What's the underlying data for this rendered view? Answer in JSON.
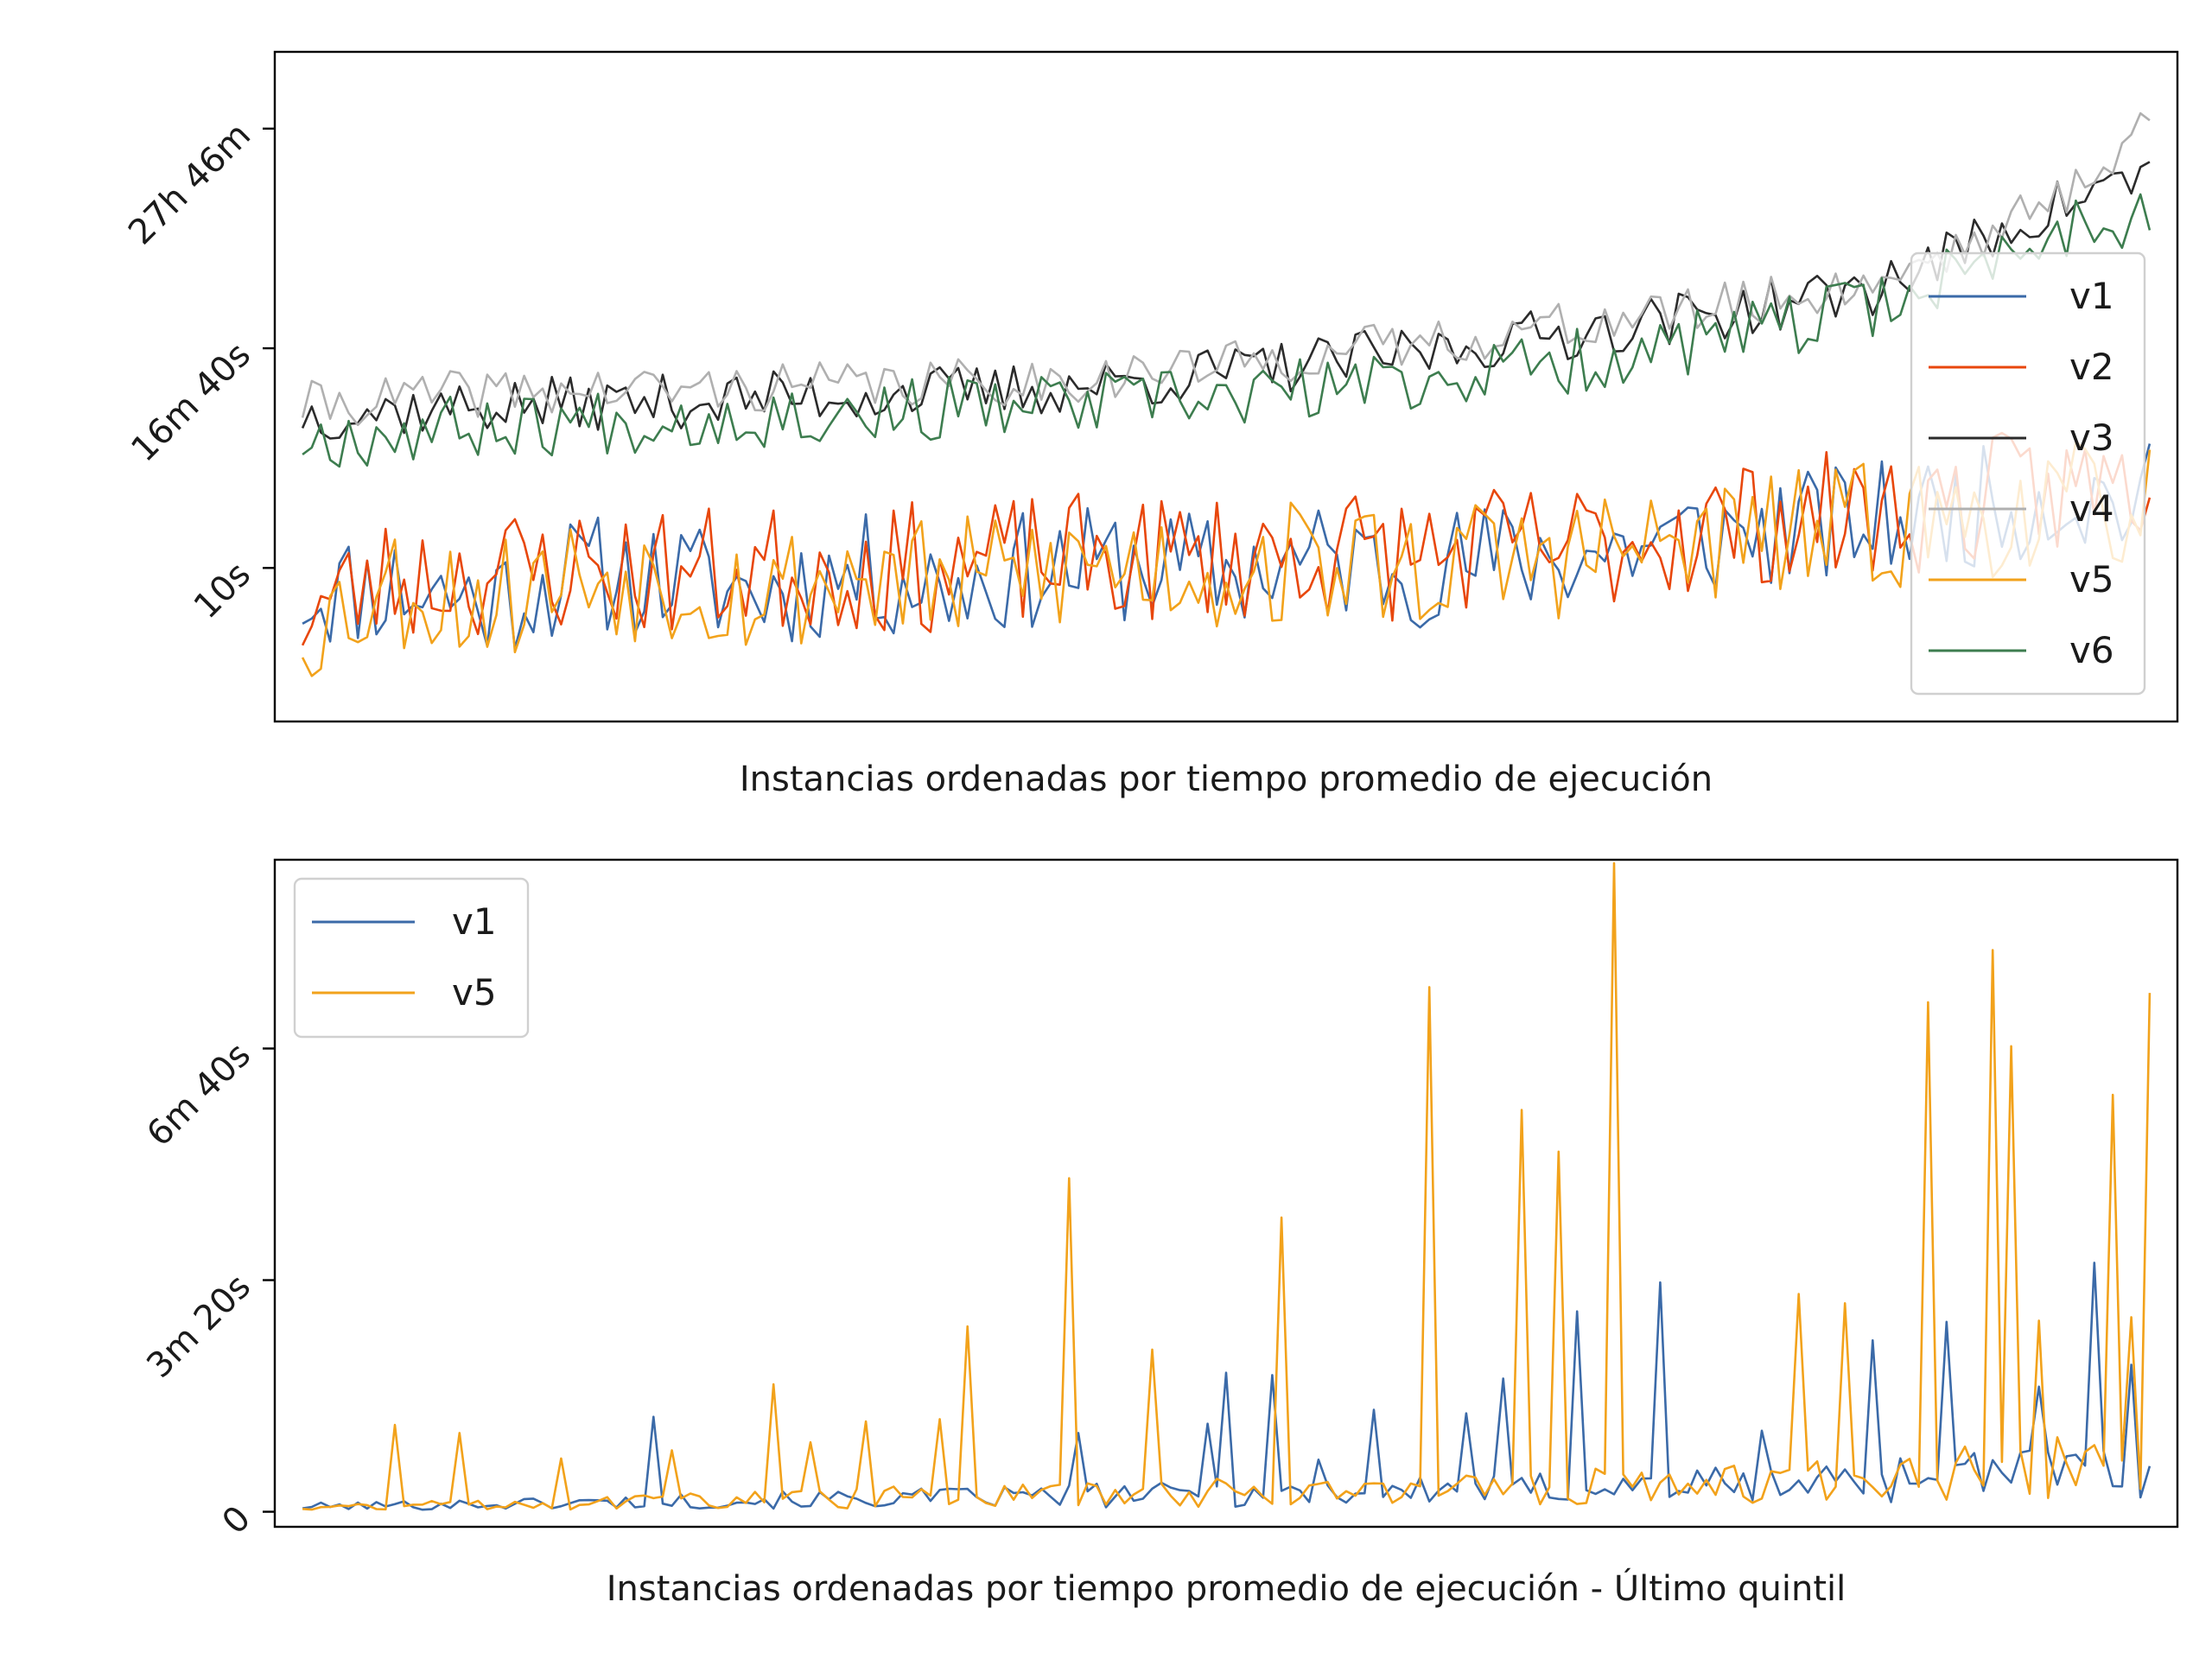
{
  "chart_data": [
    {
      "type": "line",
      "xlabel": "Instancias ordenadas por tiempo promedio de ejecución",
      "ylabel": "",
      "yscale": "log",
      "ytick_values": [
        10,
        1000,
        100000
      ],
      "ytick_labels": [
        "10s",
        "16m 40s",
        "27h 46m"
      ],
      "ylim": [
        0.4,
        500000
      ],
      "xlim": [
        -3,
        203
      ],
      "grid": false,
      "legend_position": "right",
      "x_ticks_shown": false,
      "series": [
        {
          "name": "v1",
          "color": "#3b6aa8",
          "knots": [
            [
              0,
              6
            ],
            [
              10,
              7
            ],
            [
              20,
              5
            ],
            [
              30,
              9
            ],
            [
              40,
              8
            ],
            [
              50,
              6
            ],
            [
              60,
              9
            ],
            [
              70,
              7
            ],
            [
              80,
              10
            ],
            [
              90,
              11
            ],
            [
              100,
              9
            ],
            [
              110,
              12
            ],
            [
              120,
              10
            ],
            [
              130,
              12
            ],
            [
              140,
              14
            ],
            [
              150,
              18
            ],
            [
              160,
              22
            ],
            [
              170,
              26
            ],
            [
              180,
              35
            ],
            [
              190,
              45
            ],
            [
              198,
              40
            ],
            [
              200,
              40
            ]
          ],
          "noise": 0.55,
          "seed": 11
        },
        {
          "name": "v2",
          "color": "#e8470c",
          "knots": [
            [
              0,
              4
            ],
            [
              10,
              8
            ],
            [
              20,
              9
            ],
            [
              30,
              10
            ],
            [
              40,
              9
            ],
            [
              50,
              10
            ],
            [
              60,
              10
            ],
            [
              70,
              10
            ],
            [
              80,
              12
            ],
            [
              90,
              12
            ],
            [
              100,
              13
            ],
            [
              110,
              14
            ],
            [
              120,
              13
            ],
            [
              130,
              15
            ],
            [
              140,
              16
            ],
            [
              150,
              22
            ],
            [
              160,
              28
            ],
            [
              170,
              30
            ],
            [
              180,
              40
            ],
            [
              190,
              50
            ],
            [
              198,
              60
            ],
            [
              200,
              60
            ]
          ],
          "noise": 0.6,
          "seed": 23
        },
        {
          "name": "v3",
          "color": "#2b2b2b",
          "knots": [
            [
              0,
              250
            ],
            [
              20,
              300
            ],
            [
              40,
              330
            ],
            [
              60,
              380
            ],
            [
              80,
              420
            ],
            [
              100,
              600
            ],
            [
              120,
              900
            ],
            [
              140,
              1500
            ],
            [
              160,
              2500
            ],
            [
              170,
              3500
            ],
            [
              180,
              8000
            ],
            [
              190,
              20000
            ],
            [
              200,
              40000
            ]
          ],
          "noise": 0.25,
          "seed": 37
        },
        {
          "name": "v4",
          "color": "#b0b0b0",
          "knots": [
            [
              0,
              300
            ],
            [
              20,
              400
            ],
            [
              40,
              420
            ],
            [
              60,
              460
            ],
            [
              80,
              500
            ],
            [
              100,
              700
            ],
            [
              120,
              1100
            ],
            [
              140,
              1700
            ],
            [
              160,
              2800
            ],
            [
              170,
              4000
            ],
            [
              180,
              9000
            ],
            [
              190,
              22000
            ],
            [
              200,
              120000
            ]
          ],
          "noise": 0.22,
          "seed": 41
        },
        {
          "name": "v5",
          "color": "#f2a21b",
          "knots": [
            [
              0,
              3
            ],
            [
              10,
              7
            ],
            [
              20,
              5
            ],
            [
              30,
              9
            ],
            [
              40,
              8
            ],
            [
              50,
              6
            ],
            [
              60,
              9
            ],
            [
              70,
              7
            ],
            [
              80,
              10
            ],
            [
              90,
              11
            ],
            [
              100,
              9
            ],
            [
              110,
              12
            ],
            [
              120,
              10
            ],
            [
              130,
              12
            ],
            [
              140,
              14
            ],
            [
              150,
              16
            ],
            [
              160,
              20
            ],
            [
              170,
              24
            ],
            [
              180,
              28
            ],
            [
              190,
              35
            ],
            [
              200,
              40
            ]
          ],
          "noise": 0.6,
          "seed": 53
        },
        {
          "name": "v6",
          "color": "#3d7d4f",
          "knots": [
            [
              0,
              150
            ],
            [
              20,
              200
            ],
            [
              40,
              230
            ],
            [
              60,
              260
            ],
            [
              80,
              300
            ],
            [
              100,
              350
            ],
            [
              120,
              500
            ],
            [
              140,
              800
            ],
            [
              160,
              1500
            ],
            [
              170,
              2500
            ],
            [
              180,
              5000
            ],
            [
              190,
              12000
            ],
            [
              200,
              18000
            ]
          ],
          "noise": 0.3,
          "seed": 67
        }
      ]
    },
    {
      "type": "line",
      "xlabel": "Instancias ordenadas por tiempo promedio de ejecución - Último quintil",
      "ylabel": "",
      "yscale": "linear",
      "ytick_values": [
        0,
        200,
        400
      ],
      "ytick_labels": [
        "0",
        "3m 20s",
        "6m 40s"
      ],
      "ylim": [
        -13,
        563
      ],
      "xlim": [
        -3,
        203
      ],
      "grid": false,
      "legend_position": "upper left",
      "x_ticks_shown": false,
      "series": [
        {
          "name": "v1",
          "color": "#3b6aa8",
          "base": [
            [
              0,
              4
            ],
            [
              40,
              8
            ],
            [
              80,
              12
            ],
            [
              120,
              16
            ],
            [
              160,
              22
            ],
            [
              200,
              35
            ]
          ],
          "noise": 0.9,
          "seed": 101,
          "spikes": [
            [
              38,
              82
            ],
            [
              84,
              68
            ],
            [
              98,
              76
            ],
            [
              100,
              120
            ],
            [
              105,
              118
            ],
            [
              110,
              45
            ],
            [
              116,
              88
            ],
            [
              126,
              85
            ],
            [
              130,
              115
            ],
            [
              138,
              173
            ],
            [
              147,
              198
            ],
            [
              158,
              70
            ],
            [
              170,
              148
            ],
            [
              178,
              164
            ],
            [
              194,
              215
            ],
            [
              188,
              108
            ],
            [
              220,
              127
            ]
          ]
        },
        {
          "name": "v5",
          "color": "#f2a21b",
          "base": [
            [
              0,
              3
            ],
            [
              40,
              8
            ],
            [
              80,
              12
            ],
            [
              120,
              16
            ],
            [
              160,
              22
            ],
            [
              200,
              35
            ]
          ],
          "noise": 1.0,
          "seed": 131,
          "spikes": [
            [
              10,
              75
            ],
            [
              17,
              68
            ],
            [
              28,
              46
            ],
            [
              40,
              53
            ],
            [
              51,
              110
            ],
            [
              55,
              60
            ],
            [
              61,
              78
            ],
            [
              69,
              80
            ],
            [
              72,
              160
            ],
            [
              83,
              288
            ],
            [
              92,
              140
            ],
            [
              106,
              254
            ],
            [
              122,
              453
            ],
            [
              132,
              347
            ],
            [
              136,
              311
            ],
            [
              142,
              560
            ],
            [
              162,
              188
            ],
            [
              167,
              180
            ],
            [
              176,
              440
            ],
            [
              183,
              485
            ],
            [
              185,
              402
            ],
            [
              188,
              165
            ],
            [
              200,
              448
            ],
            [
              196,
              360
            ],
            [
              198,
              168
            ]
          ]
        }
      ]
    }
  ]
}
